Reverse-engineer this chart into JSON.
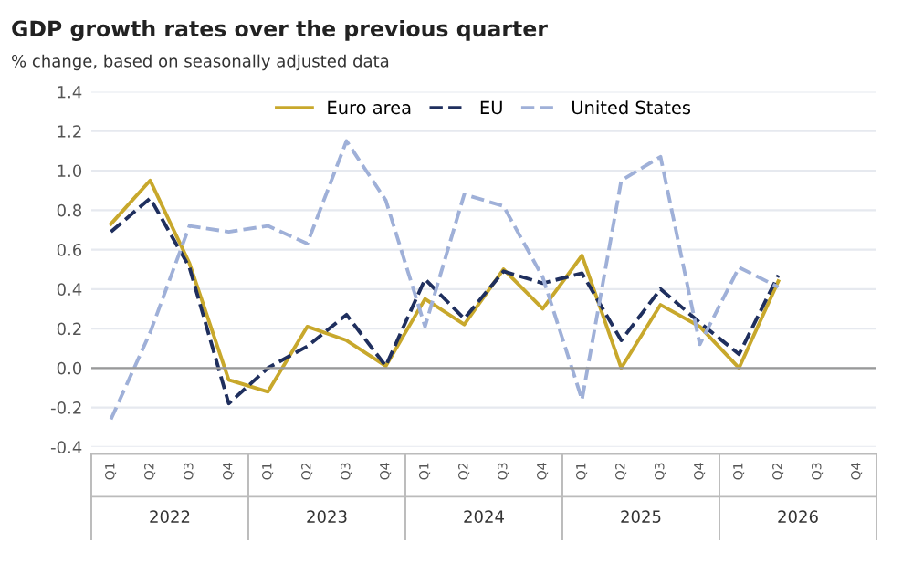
{
  "chart_data": {
    "type": "line",
    "title": "GDP growth rates over the previous quarter",
    "subtitle": "% change, based on seasonally adjusted data",
    "categories": [
      "Q1",
      "Q2",
      "Q3",
      "Q4",
      "Q1",
      "Q2",
      "Q3",
      "Q4",
      "Q1",
      "Q2",
      "Q3",
      "Q4",
      "Q1",
      "Q2",
      "Q3",
      "Q4",
      "Q1",
      "Q2",
      "Q3",
      "Q4"
    ],
    "annotations": [
      "2022",
      "2023",
      "2024",
      "2025",
      "2026"
    ],
    "series": [
      {
        "name": "Euro area",
        "color": "#c8a82c",
        "line_style": "solid",
        "values": [
          0.73,
          0.95,
          0.53,
          -0.06,
          -0.12,
          0.21,
          0.14,
          0.01,
          0.35,
          0.22,
          0.5,
          0.3,
          0.57,
          0.0,
          0.32,
          0.21,
          0.0,
          0.44,
          null,
          null
        ]
      },
      {
        "name": "EU",
        "color": "#1f2f5e",
        "line_style": "dashed",
        "values": [
          0.69,
          0.86,
          0.51,
          -0.18,
          0.0,
          0.11,
          0.27,
          0.01,
          0.45,
          0.25,
          0.49,
          0.43,
          0.48,
          0.14,
          0.4,
          0.23,
          0.07,
          0.47,
          null,
          null
        ]
      },
      {
        "name": "United States",
        "color": "#9fb0d8",
        "line_style": "dashed",
        "values": [
          -0.26,
          0.18,
          0.72,
          0.69,
          0.72,
          0.63,
          1.15,
          0.85,
          0.21,
          0.88,
          0.82,
          0.46,
          -0.16,
          0.95,
          1.07,
          0.12,
          0.51,
          0.41,
          null,
          null
        ]
      }
    ],
    "ylim": [
      -0.4,
      1.4
    ],
    "yticks": [
      {
        "value": -0.4,
        "label": "-0.4"
      },
      {
        "value": -0.2,
        "label": "-0.2"
      },
      {
        "value": 0.0,
        "label": "0.0"
      },
      {
        "value": 0.2,
        "label": "0.2"
      },
      {
        "value": 0.4,
        "label": "0.4"
      },
      {
        "value": 0.6,
        "label": "0.6"
      },
      {
        "value": 0.8,
        "label": "0.8"
      },
      {
        "value": 1.0,
        "label": "1.0"
      },
      {
        "value": 1.2,
        "label": "1.2"
      },
      {
        "value": 1.4,
        "label": "1.4"
      }
    ],
    "grid": "y",
    "legend": "top"
  }
}
